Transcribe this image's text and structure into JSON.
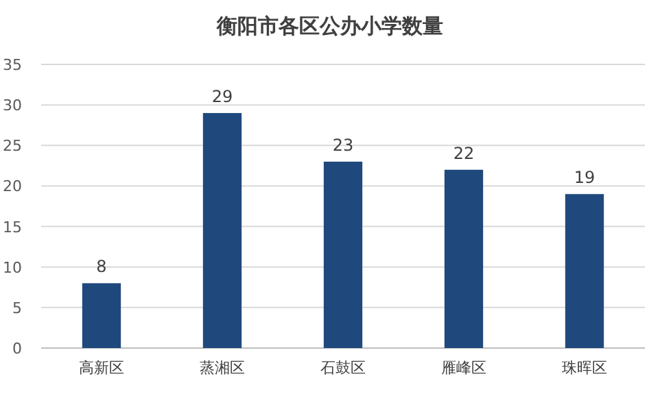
{
  "chart_data": {
    "type": "bar",
    "title": "衡阳市各区公办小学数量",
    "categories": [
      "高新区",
      "蒸湘区",
      "石鼓区",
      "雁峰区",
      "珠晖区"
    ],
    "values": [
      8,
      29,
      23,
      22,
      19
    ],
    "color": "#1f497d",
    "ylim": [
      0,
      35
    ],
    "yticks": [
      0,
      5,
      10,
      15,
      20,
      25,
      30,
      35
    ],
    "grid": "y",
    "data_labels": true
  }
}
